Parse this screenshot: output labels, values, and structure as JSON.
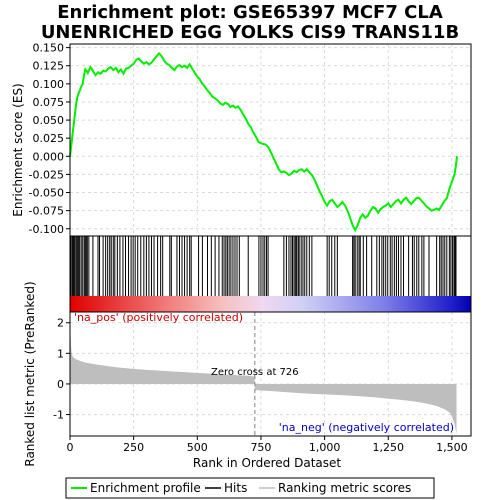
{
  "title_line1": "Enrichment plot: GSE65397 MCF7 CLA",
  "title_line2": "UNENRICHED EGG YOLKS CIS9 TRANS11B",
  "colors": {
    "es_line": "#00ee00",
    "hits": "#000000",
    "metric_fill": "#bebebe",
    "grid": "#d9d9d9",
    "zero_cross": "#808080",
    "pos_text": "#cc0000",
    "neg_text": "#0000cc"
  },
  "chart_data": [
    {
      "type": "line",
      "panel": "enrichment-profile",
      "ylabel": "Enrichment score (ES)",
      "ylim": [
        -0.11,
        0.155
      ],
      "yticks": [
        -0.1,
        -0.075,
        -0.05,
        -0.025,
        0.0,
        0.025,
        0.05,
        0.075,
        0.1,
        0.125,
        0.15
      ],
      "ytick_labels": [
        "-0.100",
        "-0.075",
        "-0.050",
        "-0.025",
        "0.000",
        "0.025",
        "0.050",
        "0.075",
        "0.100",
        "0.125",
        "0.150"
      ],
      "grid": true,
      "x": [
        0,
        5,
        10,
        15,
        20,
        25,
        30,
        35,
        40,
        45,
        50,
        55,
        60,
        65,
        70,
        80,
        90,
        100,
        110,
        120,
        130,
        140,
        150,
        160,
        170,
        180,
        190,
        200,
        210,
        220,
        230,
        240,
        250,
        260,
        270,
        280,
        290,
        300,
        310,
        320,
        330,
        340,
        350,
        360,
        370,
        380,
        390,
        400,
        410,
        420,
        430,
        440,
        450,
        460,
        470,
        480,
        490,
        500,
        510,
        520,
        530,
        540,
        550,
        560,
        570,
        580,
        590,
        600,
        610,
        620,
        630,
        640,
        650,
        660,
        670,
        680,
        690,
        700,
        710,
        720,
        730,
        740,
        750,
        760,
        770,
        780,
        790,
        800,
        810,
        820,
        830,
        840,
        850,
        860,
        870,
        880,
        890,
        900,
        910,
        920,
        930,
        940,
        950,
        960,
        970,
        980,
        990,
        1000,
        1010,
        1020,
        1030,
        1040,
        1050,
        1060,
        1070,
        1080,
        1090,
        1100,
        1110,
        1120,
        1130,
        1140,
        1150,
        1160,
        1170,
        1180,
        1190,
        1200,
        1210,
        1220,
        1230,
        1240,
        1250,
        1260,
        1270,
        1280,
        1290,
        1300,
        1310,
        1320,
        1330,
        1340,
        1350,
        1360,
        1370,
        1380,
        1390,
        1400,
        1410,
        1420,
        1430,
        1440,
        1450,
        1460,
        1470,
        1480,
        1490,
        1500,
        1505,
        1510,
        1515,
        1520
      ],
      "y": [
        0.0,
        0.015,
        0.03,
        0.045,
        0.06,
        0.075,
        0.083,
        0.088,
        0.092,
        0.097,
        0.1,
        0.112,
        0.12,
        0.118,
        0.115,
        0.123,
        0.118,
        0.112,
        0.116,
        0.114,
        0.118,
        0.117,
        0.121,
        0.123,
        0.119,
        0.122,
        0.116,
        0.12,
        0.114,
        0.121,
        0.122,
        0.125,
        0.128,
        0.133,
        0.135,
        0.131,
        0.128,
        0.13,
        0.127,
        0.129,
        0.134,
        0.138,
        0.142,
        0.138,
        0.132,
        0.128,
        0.126,
        0.122,
        0.119,
        0.124,
        0.126,
        0.123,
        0.125,
        0.122,
        0.127,
        0.121,
        0.115,
        0.11,
        0.106,
        0.1,
        0.096,
        0.091,
        0.087,
        0.082,
        0.08,
        0.077,
        0.073,
        0.071,
        0.074,
        0.072,
        0.068,
        0.07,
        0.067,
        0.069,
        0.064,
        0.058,
        0.052,
        0.045,
        0.04,
        0.033,
        0.027,
        0.02,
        0.018,
        0.017,
        0.016,
        0.012,
        0.005,
        -0.003,
        -0.01,
        -0.018,
        -0.022,
        -0.021,
        -0.023,
        -0.026,
        -0.024,
        -0.02,
        -0.022,
        -0.019,
        -0.018,
        -0.021,
        -0.018,
        -0.022,
        -0.026,
        -0.032,
        -0.04,
        -0.048,
        -0.055,
        -0.063,
        -0.068,
        -0.062,
        -0.06,
        -0.065,
        -0.07,
        -0.067,
        -0.063,
        -0.068,
        -0.075,
        -0.085,
        -0.095,
        -0.102,
        -0.095,
        -0.085,
        -0.08,
        -0.085,
        -0.082,
        -0.075,
        -0.07,
        -0.072,
        -0.078,
        -0.073,
        -0.07,
        -0.068,
        -0.065,
        -0.07,
        -0.066,
        -0.062,
        -0.06,
        -0.065,
        -0.06,
        -0.057,
        -0.062,
        -0.066,
        -0.062,
        -0.058,
        -0.057,
        -0.061,
        -0.065,
        -0.069,
        -0.072,
        -0.075,
        -0.074,
        -0.072,
        -0.074,
        -0.068,
        -0.062,
        -0.058,
        -0.045,
        -0.035,
        -0.03,
        -0.025,
        -0.015,
        0.0
      ]
    },
    {
      "type": "scatter",
      "panel": "hits",
      "hit_positions": [
        3,
        8,
        12,
        16,
        20,
        25,
        30,
        34,
        38,
        44,
        50,
        56,
        60,
        64,
        68,
        74,
        90,
        110,
        116,
        130,
        140,
        148,
        156,
        162,
        170,
        176,
        186,
        196,
        208,
        218,
        230,
        240,
        248,
        256,
        266,
        278,
        290,
        300,
        310,
        320,
        330,
        344,
        356,
        364,
        392,
        398,
        420,
        430,
        440,
        450,
        460,
        470,
        476,
        505,
        520,
        540,
        555,
        570,
        585,
        598,
        605,
        612,
        618,
        625,
        632,
        640,
        648,
        656,
        665,
        700,
        742,
        750,
        758,
        765,
        772,
        778,
        840,
        850,
        860,
        868,
        874,
        880,
        885,
        890,
        896,
        900,
        908,
        915,
        922,
        930,
        940,
        950,
        1010,
        1018,
        1028,
        1040,
        1050,
        1110,
        1115,
        1120,
        1128,
        1135,
        1140,
        1152,
        1165,
        1185,
        1205,
        1215,
        1225,
        1232,
        1240,
        1248,
        1258,
        1265,
        1274,
        1282,
        1290,
        1300,
        1310,
        1330,
        1345,
        1352,
        1362,
        1370,
        1382,
        1390,
        1410,
        1440,
        1452,
        1458,
        1465,
        1472,
        1480,
        1490,
        1496,
        1502,
        1508,
        1512,
        1516
      ]
    },
    {
      "type": "area",
      "panel": "ranking-metric",
      "ylabel": "Ranked list metric (PreRanked)",
      "xlabel": "Rank in Ordered Dataset",
      "xlim": [
        0,
        1575
      ],
      "ylim": [
        -1.7,
        2.35
      ],
      "xticks": [
        0,
        250,
        500,
        750,
        1000,
        1250,
        1500
      ],
      "xtick_labels": [
        "0",
        "250",
        "500",
        "750",
        "1,000",
        "1,250",
        "1,500"
      ],
      "yticks": [
        -1,
        0,
        1,
        2
      ],
      "ytick_labels": [
        "-1",
        "0",
        "1",
        "2"
      ],
      "x": [
        0,
        2,
        5,
        10,
        20,
        40,
        60,
        100,
        150,
        200,
        250,
        300,
        400,
        500,
        600,
        700,
        725,
        726,
        730,
        800,
        900,
        1000,
        1100,
        1200,
        1300,
        1350,
        1400,
        1440,
        1470,
        1490,
        1500,
        1505,
        1510,
        1515,
        1518
      ],
      "values": [
        2.1,
        1.6,
        1.1,
        0.9,
        0.82,
        0.75,
        0.7,
        0.64,
        0.58,
        0.53,
        0.49,
        0.46,
        0.41,
        0.36,
        0.31,
        0.27,
        0.24,
        -0.2,
        -0.2,
        -0.24,
        -0.3,
        -0.34,
        -0.38,
        -0.44,
        -0.52,
        -0.57,
        -0.64,
        -0.72,
        -0.82,
        -0.93,
        -1.05,
        -1.18,
        -1.3,
        -1.5,
        -1.65
      ],
      "zero_cross_rank": 726,
      "zero_cross_label": "Zero cross at 726",
      "pos_label": "'na_pos' (positively correlated)",
      "neg_label": "'na_neg' (negatively correlated)"
    }
  ],
  "legend": {
    "items": [
      "Enrichment profile",
      "Hits",
      "Ranking metric scores"
    ]
  }
}
